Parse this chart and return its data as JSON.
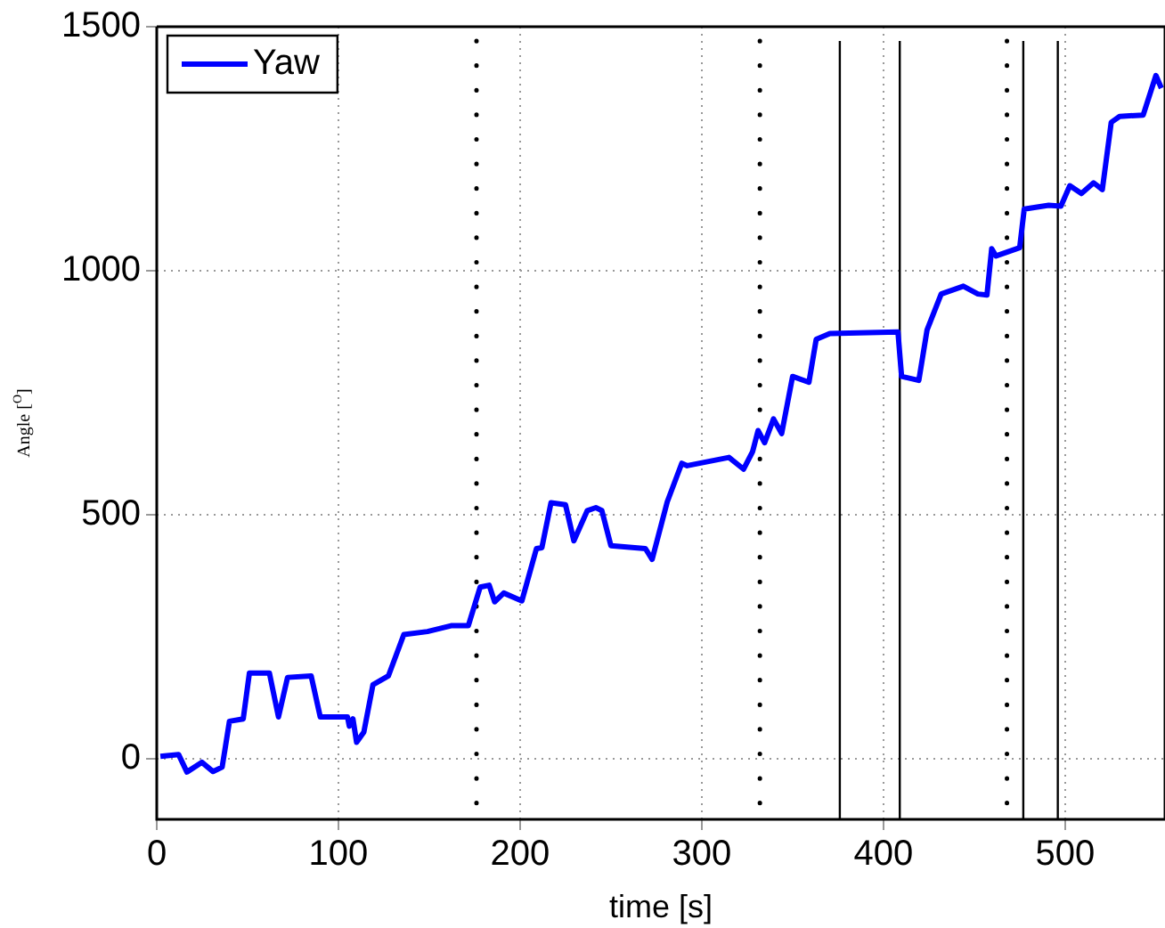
{
  "chart_data": {
    "type": "line",
    "xlabel": "time [s]",
    "ylabel": "Angle [$^{O}$]",
    "x": [
      2,
      12,
      16.6,
      24.8,
      31,
      36,
      40,
      47.6,
      51,
      62,
      67,
      72,
      85,
      90,
      105,
      106,
      108,
      110,
      114,
      119,
      127.5,
      136,
      149,
      162,
      171.5,
      178,
      183,
      186,
      191,
      201,
      209,
      212,
      217,
      225,
      229.6,
      237,
      241.7,
      245,
      250,
      269,
      272.7,
      281,
      289,
      292,
      315,
      323,
      328,
      331,
      334.6,
      339.5,
      344,
      350,
      359,
      363,
      370.5,
      408,
      410,
      419.5,
      424,
      431.8,
      444,
      452,
      457,
      459.6,
      462,
      475,
      477.5,
      491,
      497.7,
      502.6,
      509,
      515.7,
      520.5,
      525.4,
      530,
      543,
      550,
      553
    ],
    "series": [
      {
        "name": "Yaw",
        "color": "#0000ff",
        "values": [
          4,
          8,
          -28,
          -8,
          -27,
          -18,
          76,
          81,
          175,
          175,
          85,
          166,
          169,
          85,
          85,
          66,
          81,
          33,
          54,
          151,
          169,
          254,
          260,
          272,
          272,
          351,
          355,
          321,
          339,
          323,
          430,
          432,
          524,
          520,
          446,
          508,
          514,
          508,
          436,
          430,
          408,
          526,
          605,
          600,
          617,
          593,
          629,
          672,
          647,
          696,
          666,
          783,
          771,
          859,
          871,
          874,
          783,
          775,
          878,
          952,
          968,
          952,
          950,
          1045,
          1030,
          1047,
          1126,
          1134,
          1132,
          1174,
          1158,
          1180,
          1166,
          1304,
          1316,
          1319,
          1400,
          1374
        ]
      }
    ],
    "xlim": [
      0,
      555
    ],
    "ylim": [
      -125,
      1500
    ],
    "xticks": [
      0,
      100,
      200,
      300,
      400,
      500
    ],
    "yticks": [
      0,
      500,
      1000,
      1500
    ],
    "grid": true,
    "legend": "top left",
    "marker": "none",
    "line_style": "solid",
    "ref_lines": [
      {
        "axis": "x",
        "value": 176,
        "color": "#000000",
        "line_style": "dotted"
      },
      {
        "axis": "x",
        "value": 332,
        "color": "#000000",
        "line_style": "dotted"
      },
      {
        "axis": "x",
        "value": 376,
        "color": "#000000",
        "line_style": "solid"
      },
      {
        "axis": "x",
        "value": 409,
        "color": "#000000",
        "line_style": "solid"
      },
      {
        "axis": "x",
        "value": 468,
        "color": "#000000",
        "line_style": "dotted"
      },
      {
        "axis": "x",
        "value": 477,
        "color": "#000000",
        "line_style": "solid"
      },
      {
        "axis": "x",
        "value": 496,
        "color": "#000000",
        "line_style": "solid"
      }
    ]
  }
}
